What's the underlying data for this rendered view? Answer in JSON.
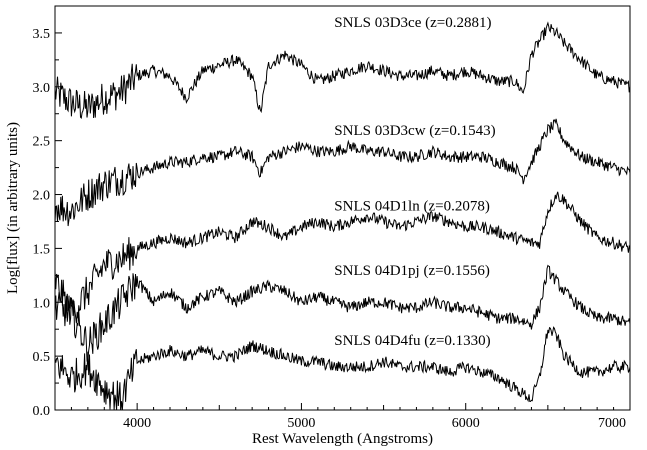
{
  "chart_data": {
    "type": "line",
    "title": "",
    "xlabel": "Rest Wavelength (Angstroms)",
    "ylabel": "Log[flux] (in arbitrary units)",
    "xlim": [
      3500,
      7000
    ],
    "ylim": [
      0,
      3.75
    ],
    "xticks": [
      4000,
      5000,
      6000,
      7000
    ],
    "yticks": [
      0.0,
      0.5,
      1.0,
      1.5,
      2.0,
      2.5,
      3.0,
      3.5
    ],
    "xtick_labels": [
      "4000",
      "5000",
      "6000",
      "7000"
    ],
    "ytick_labels": [
      "0.0",
      "0.5",
      "1.0",
      "1.5",
      "2.0",
      "2.5",
      "3.0",
      "3.5"
    ],
    "grid": false,
    "series": [
      {
        "name": "SNLS 03D3ce (z=0.2881)",
        "x": [
          3500,
          3600,
          3700,
          3800,
          3900,
          4000,
          4100,
          4200,
          4300,
          4400,
          4500,
          4600,
          4700,
          4750,
          4800,
          4900,
          5000,
          5100,
          5200,
          5300,
          5400,
          5500,
          5600,
          5700,
          5800,
          5900,
          6000,
          6100,
          6200,
          6300,
          6350,
          6400,
          6500,
          6550,
          6600,
          6700,
          6800,
          6900,
          7000
        ],
        "values": [
          2.95,
          2.85,
          2.8,
          2.9,
          2.95,
          3.1,
          3.15,
          3.1,
          2.9,
          3.15,
          3.2,
          3.25,
          3.1,
          2.75,
          3.2,
          3.3,
          3.2,
          3.05,
          3.1,
          3.15,
          3.2,
          3.15,
          3.1,
          3.1,
          3.15,
          3.1,
          3.15,
          3.1,
          3.05,
          3.05,
          2.95,
          3.3,
          3.55,
          3.5,
          3.4,
          3.25,
          3.1,
          3.05,
          3.0
        ]
      },
      {
        "name": "SNLS 03D3cw (z=0.1543)",
        "x": [
          3500,
          3600,
          3700,
          3800,
          3900,
          4000,
          4100,
          4200,
          4300,
          4400,
          4500,
          4600,
          4700,
          4750,
          4800,
          4900,
          5000,
          5100,
          5200,
          5300,
          5400,
          5500,
          5600,
          5700,
          5800,
          5900,
          6000,
          6100,
          6200,
          6300,
          6350,
          6400,
          6500,
          6550,
          6600,
          6700,
          6800,
          6900,
          7000
        ],
        "values": [
          1.9,
          1.85,
          2.0,
          2.1,
          2.15,
          2.2,
          2.25,
          2.3,
          2.3,
          2.35,
          2.35,
          2.4,
          2.35,
          2.2,
          2.35,
          2.4,
          2.45,
          2.4,
          2.4,
          2.45,
          2.4,
          2.4,
          2.35,
          2.35,
          2.4,
          2.35,
          2.35,
          2.35,
          2.3,
          2.25,
          2.15,
          2.3,
          2.6,
          2.65,
          2.5,
          2.35,
          2.3,
          2.25,
          2.2
        ]
      },
      {
        "name": "SNLS 04D1ln (z=0.2078)",
        "x": [
          3500,
          3600,
          3700,
          3800,
          3900,
          4000,
          4100,
          4200,
          4300,
          4400,
          4500,
          4600,
          4700,
          4800,
          4900,
          5000,
          5100,
          5200,
          5300,
          5400,
          5500,
          5600,
          5700,
          5800,
          5900,
          6000,
          6100,
          6200,
          6300,
          6400,
          6450,
          6500,
          6550,
          6600,
          6700,
          6800,
          6900,
          7000
        ],
        "values": [
          1.2,
          0.9,
          1.1,
          1.35,
          1.4,
          1.5,
          1.55,
          1.6,
          1.55,
          1.6,
          1.65,
          1.6,
          1.75,
          1.7,
          1.6,
          1.7,
          1.75,
          1.7,
          1.75,
          1.8,
          1.75,
          1.7,
          1.75,
          1.8,
          1.75,
          1.7,
          1.7,
          1.65,
          1.6,
          1.55,
          1.55,
          1.85,
          2.0,
          1.95,
          1.75,
          1.6,
          1.55,
          1.5
        ]
      },
      {
        "name": "SNLS 04D1pj (z=0.1556)",
        "x": [
          3500,
          3600,
          3700,
          3800,
          3900,
          4000,
          4100,
          4200,
          4300,
          4400,
          4500,
          4600,
          4700,
          4800,
          4900,
          5000,
          5100,
          5200,
          5300,
          5400,
          5500,
          5600,
          5700,
          5800,
          5900,
          6000,
          6100,
          6200,
          6300,
          6400,
          6450,
          6500,
          6550,
          6600,
          6700,
          6800,
          6900,
          7000
        ],
        "values": [
          0.95,
          0.9,
          0.6,
          0.8,
          1.0,
          1.2,
          1.0,
          1.1,
          0.95,
          1.05,
          1.1,
          1.0,
          1.1,
          1.15,
          1.1,
          1.0,
          1.05,
          1.0,
          0.95,
          1.0,
          1.0,
          0.95,
          0.95,
          1.0,
          0.95,
          0.95,
          0.9,
          0.85,
          0.85,
          0.8,
          0.95,
          1.3,
          1.2,
          1.1,
          0.95,
          0.85,
          0.85,
          0.8
        ]
      },
      {
        "name": "SNLS 04D4fu (z=0.1330)",
        "x": [
          3500,
          3600,
          3700,
          3800,
          3900,
          4000,
          4100,
          4200,
          4300,
          4400,
          4500,
          4600,
          4700,
          4800,
          4900,
          5000,
          5100,
          5200,
          5300,
          5400,
          5500,
          5600,
          5700,
          5800,
          5900,
          6000,
          6100,
          6200,
          6300,
          6350,
          6400,
          6450,
          6500,
          6550,
          6600,
          6700,
          6800,
          6900,
          7000
        ],
        "values": [
          0.45,
          0.3,
          0.4,
          0.2,
          0.1,
          0.45,
          0.5,
          0.55,
          0.5,
          0.55,
          0.5,
          0.5,
          0.6,
          0.55,
          0.5,
          0.45,
          0.45,
          0.4,
          0.4,
          0.4,
          0.45,
          0.4,
          0.4,
          0.4,
          0.35,
          0.4,
          0.35,
          0.3,
          0.2,
          0.15,
          0.1,
          0.3,
          0.75,
          0.7,
          0.5,
          0.35,
          0.35,
          0.4,
          0.4
        ]
      }
    ],
    "annotations": [
      {
        "text": "SNLS 03D3ce (z=0.2881)",
        "x": 5200,
        "y": 3.6
      },
      {
        "text": "SNLS 03D3cw (z=0.1543)",
        "x": 5200,
        "y": 2.6
      },
      {
        "text": "SNLS 04D1ln (z=0.2078)",
        "x": 5200,
        "y": 1.9
      },
      {
        "text": "SNLS 04D1pj (z=0.1556)",
        "x": 5200,
        "y": 1.3
      },
      {
        "text": "SNLS 04D4fu (z=0.1330)",
        "x": 5200,
        "y": 0.65
      }
    ]
  }
}
